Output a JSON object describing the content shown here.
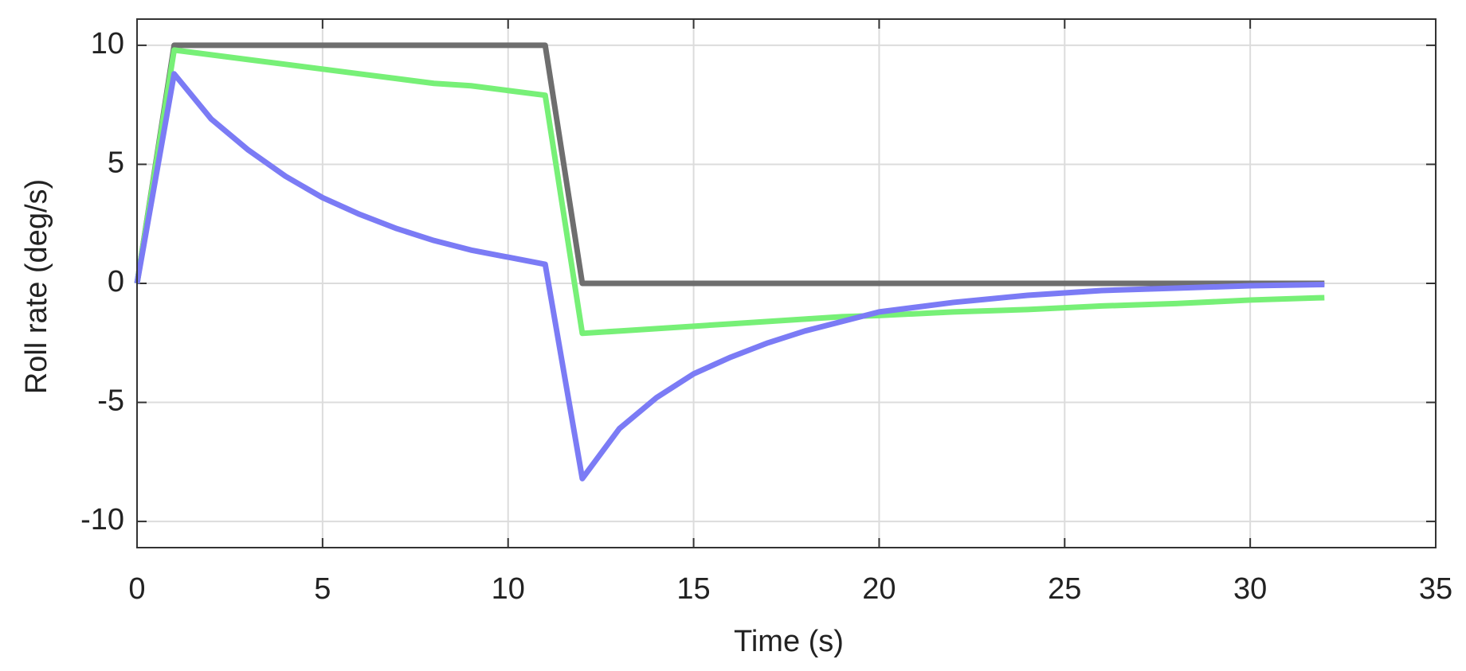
{
  "chart_data": {
    "type": "line",
    "xlabel": "Time (s)",
    "ylabel": "Roll rate (deg/s)",
    "x": [
      0,
      1,
      2,
      3,
      4,
      5,
      6,
      7,
      8,
      9,
      10,
      11,
      12,
      13,
      14,
      15,
      16,
      17,
      18,
      19,
      20,
      22,
      24,
      26,
      28,
      30,
      32
    ],
    "series": [
      {
        "color": "#6e6e6e",
        "values": [
          0,
          10,
          10,
          10,
          10,
          10,
          10,
          10,
          10,
          10,
          10,
          10,
          0,
          0,
          0,
          0,
          0,
          0,
          0,
          0,
          0,
          0,
          0,
          0,
          0,
          0,
          0
        ]
      },
      {
        "color": "#77f077",
        "values": [
          0,
          9.8,
          9.6,
          9.4,
          9.2,
          9.0,
          8.8,
          8.6,
          8.4,
          8.3,
          8.1,
          7.9,
          -2.1,
          -2.0,
          -1.9,
          -1.8,
          -1.7,
          -1.6,
          -1.5,
          -1.4,
          -1.35,
          -1.2,
          -1.1,
          -0.95,
          -0.85,
          -0.7,
          -0.6
        ]
      },
      {
        "color": "#7b7bf5",
        "values": [
          0,
          8.8,
          6.9,
          5.6,
          4.5,
          3.6,
          2.9,
          2.3,
          1.8,
          1.4,
          1.1,
          0.8,
          -8.2,
          -6.1,
          -4.8,
          -3.8,
          -3.1,
          -2.5,
          -2.0,
          -1.6,
          -1.2,
          -0.8,
          -0.5,
          -0.3,
          -0.2,
          -0.1,
          -0.05
        ]
      }
    ],
    "xlim": [
      0,
      35
    ],
    "xticks": [
      0,
      5,
      10,
      15,
      20,
      25,
      30,
      35
    ],
    "ylim": [
      -11.1,
      11.1
    ],
    "yticks": [
      -10,
      -5,
      0,
      5,
      10
    ],
    "grid": true
  }
}
